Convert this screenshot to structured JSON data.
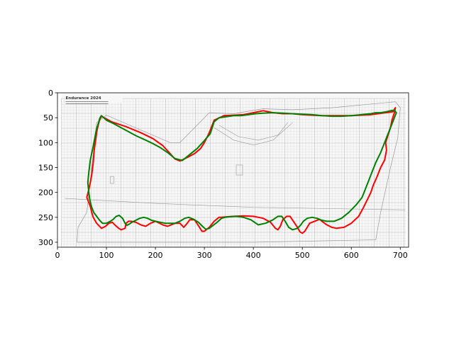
{
  "chart_data": {
    "type": "line",
    "title": "",
    "xlabel": "",
    "ylabel": "",
    "xlim": [
      0,
      717
    ],
    "ylim": [
      310,
      0
    ],
    "y_inverted": true,
    "x_ticks": [
      0,
      100,
      200,
      300,
      400,
      500,
      600,
      700
    ],
    "y_ticks": [
      0,
      50,
      100,
      150,
      200,
      250,
      300
    ],
    "background_image": {
      "description_text": [
        "Endurance 2024"
      ],
      "extent_x": [
        8,
        712
      ],
      "extent_y": [
        0,
        310
      ]
    },
    "grid": false,
    "legend": "none",
    "series": [
      {
        "color": "#ff0000",
        "closed": true,
        "x": [
          90,
          110,
          140,
          170,
          195,
          215,
          230,
          240,
          250,
          265,
          280,
          292,
          300,
          305,
          310,
          320,
          340,
          360,
          380,
          400,
          410,
          420,
          440,
          460,
          480,
          500,
          520,
          540,
          560,
          580,
          600,
          620,
          640,
          655,
          670,
          685,
          690,
          688,
          683,
          680,
          675,
          670,
          672,
          668,
          660,
          652,
          645,
          640,
          635,
          630,
          625,
          615,
          600,
          585,
          570,
          560,
          550,
          540,
          535,
          525,
          515,
          510,
          505,
          500,
          495,
          490,
          475,
          468,
          460,
          455,
          450,
          445,
          435,
          420,
          400,
          380,
          360,
          345,
          335,
          330,
          320,
          310,
          300,
          295,
          290,
          280,
          270,
          265,
          258,
          250,
          240,
          225,
          215,
          200,
          190,
          180,
          170,
          160,
          150,
          145,
          140,
          138,
          130,
          125,
          118,
          112,
          105,
          98,
          90,
          80,
          73,
          70,
          67,
          63,
          60,
          65,
          70,
          73,
          75,
          78,
          80,
          82,
          85,
          87,
          90
        ],
        "y": [
          47,
          58,
          68,
          80,
          92,
          106,
          122,
          133,
          137,
          130,
          122,
          112,
          100,
          90,
          80,
          55,
          46,
          45,
          44,
          40,
          38,
          36,
          40,
          42,
          42,
          44,
          45,
          46,
          46,
          46,
          46,
          45,
          44,
          42,
          40,
          38,
          30,
          40,
          55,
          70,
          85,
          100,
          115,
          135,
          150,
          170,
          185,
          200,
          210,
          220,
          230,
          248,
          262,
          270,
          272,
          270,
          265,
          258,
          254,
          258,
          262,
          270,
          278,
          282,
          279,
          270,
          248,
          248,
          255,
          268,
          275,
          272,
          260,
          252,
          248,
          247,
          248,
          249,
          250,
          250,
          258,
          270,
          278,
          278,
          270,
          255,
          255,
          262,
          270,
          262,
          262,
          268,
          265,
          258,
          262,
          268,
          265,
          260,
          258,
          258,
          262,
          272,
          275,
          272,
          266,
          260,
          262,
          268,
          272,
          262,
          250,
          240,
          228,
          218,
          210,
          190,
          165,
          140,
          115,
          95,
          80,
          70,
          58,
          52,
          47
        ]
      },
      {
        "color": "#008000",
        "closed": true,
        "x": [
          90,
          100,
          115,
          130,
          145,
          160,
          180,
          195,
          210,
          225,
          240,
          255,
          270,
          285,
          300,
          312,
          320,
          330,
          345,
          360,
          375,
          390,
          405,
          420,
          440,
          460,
          480,
          500,
          520,
          540,
          560,
          580,
          600,
          620,
          640,
          650,
          660,
          672,
          680,
          688,
          692,
          684,
          676,
          668,
          660,
          650,
          642,
          634,
          628,
          622,
          610,
          595,
          580,
          565,
          550,
          540,
          530,
          520,
          510,
          502,
          497,
          490,
          480,
          472,
          465,
          458,
          450,
          440,
          425,
          410,
          395,
          380,
          365,
          350,
          342,
          335,
          326,
          318,
          310,
          303,
          296,
          288,
          278,
          268,
          260,
          250,
          240,
          230,
          220,
          210,
          200,
          192,
          184,
          176,
          168,
          160,
          152,
          146,
          142,
          138,
          133,
          126,
          120,
          114,
          108,
          100,
          92,
          86,
          80,
          74,
          70,
          66,
          64,
          62,
          64,
          67,
          72,
          76,
          80,
          84,
          86,
          88,
          90
        ],
        "y": [
          46,
          55,
          62,
          70,
          78,
          86,
          95,
          102,
          110,
          120,
          132,
          136,
          124,
          112,
          96,
          82,
          58,
          50,
          48,
          46,
          46,
          44,
          42,
          41,
          40,
          41,
          42,
          43,
          44,
          46,
          47,
          47,
          46,
          44,
          42,
          40,
          40,
          38,
          36,
          35,
          40,
          60,
          80,
          100,
          120,
          140,
          160,
          180,
          195,
          210,
          225,
          240,
          252,
          258,
          258,
          256,
          252,
          250,
          252,
          258,
          265,
          272,
          275,
          270,
          258,
          248,
          248,
          255,
          262,
          265,
          255,
          250,
          248,
          249,
          250,
          252,
          260,
          266,
          272,
          274,
          268,
          260,
          254,
          250,
          252,
          258,
          262,
          262,
          262,
          260,
          258,
          256,
          252,
          250,
          252,
          256,
          260,
          264,
          266,
          262,
          252,
          246,
          248,
          254,
          258,
          262,
          262,
          256,
          248,
          240,
          230,
          215,
          200,
          180,
          160,
          135,
          112,
          92,
          72,
          60,
          52,
          48,
          46
        ]
      }
    ]
  }
}
